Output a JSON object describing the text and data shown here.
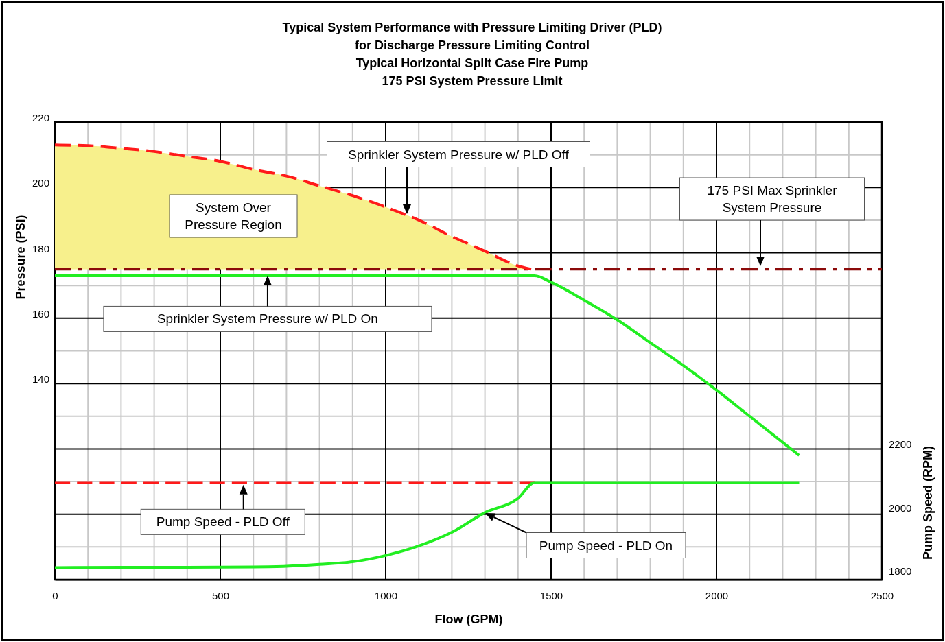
{
  "chart_data": {
    "type": "line",
    "title": "Typical System Performance with Pressure Limiting Driver (PLD)",
    "subtitle": "for Discharge Pressure Limiting Control\nTypical Horizontal Split Case Fire Pump\n175 PSI System Pressure Limit",
    "xlabel": "Flow (GPM)",
    "ylabel": "Pressure (PSI)",
    "y2label": "Pump Speed (RPM)",
    "xlim": [
      0,
      2500
    ],
    "xticks": [
      0,
      {
        "value": 100,
        "label": null
      },
      {
        "value": 200,
        "label": null
      },
      {
        "value": 300,
        "label": null
      },
      {
        "value": 400,
        "label": null
      },
      500,
      {
        "value": 600,
        "label": null
      },
      {
        "value": 700,
        "label": null
      },
      {
        "value": 800,
        "label": null
      },
      {
        "value": 900,
        "label": null
      },
      1000,
      {
        "value": 1100,
        "label": null
      },
      {
        "value": 1200,
        "label": null
      },
      {
        "value": 1300,
        "label": null
      },
      {
        "value": 1400,
        "label": null
      },
      1500,
      {
        "value": 1600,
        "label": null
      },
      {
        "value": 1700,
        "label": null
      },
      {
        "value": 1800,
        "label": null
      },
      {
        "value": 1900,
        "label": null
      },
      2000,
      {
        "value": 2100,
        "label": null
      },
      {
        "value": 2200,
        "label": null
      },
      {
        "value": 2300,
        "label": null
      },
      {
        "value": 2400,
        "label": null
      },
      2500
    ],
    "ylim": [
      80,
      220
    ],
    "yticks": [
      {
        "value": 80,
        "label": null
      },
      {
        "value": 90,
        "label": null
      },
      {
        "value": 100,
        "label": null
      },
      {
        "value": 110,
        "label": null
      },
      {
        "value": 120,
        "label": null
      },
      {
        "value": 130,
        "label": null
      },
      140,
      {
        "value": 150,
        "label": null
      },
      160,
      {
        "value": 170,
        "label": null
      },
      180,
      {
        "value": 190,
        "label": null
      },
      200,
      {
        "value": 210,
        "label": null
      },
      220
    ],
    "y2lim": [
      1774,
      3216
    ],
    "y2ticks": [
      1800,
      2000,
      2200
    ],
    "grid": true,
    "marker": "none",
    "series": [
      {
        "color": "#ff1a1a",
        "line_style": "dashed",
        "x": [
          0,
          100,
          200,
          300,
          400,
          500,
          600,
          700,
          800,
          900,
          1000,
          1100,
          1200,
          1300,
          1400,
          1440
        ],
        "values": [
          213,
          212.8,
          212,
          211,
          209.5,
          208,
          205.5,
          203.5,
          200.5,
          197.5,
          194,
          190,
          185,
          180.5,
          176,
          175
        ],
        "lower": [
          175,
          175,
          175,
          175,
          175,
          175,
          175,
          175,
          175,
          175,
          175,
          175,
          175,
          175,
          175,
          175
        ],
        "upper": [
          213,
          212.8,
          212,
          211,
          209.5,
          208,
          205.5,
          203.5,
          200.5,
          197.5,
          194,
          190,
          185,
          180.5,
          176,
          175
        ]
      },
      {
        "color": "#22ee22",
        "line_style": "solid",
        "x": [
          0,
          1450,
          1500,
          1600,
          1700,
          1800,
          1900,
          2000,
          2100,
          2200,
          2250
        ],
        "values": [
          173,
          173,
          171,
          165.5,
          159.5,
          152.5,
          145.5,
          138,
          130,
          122,
          118
        ]
      },
      {
        "color": "#ff1a1a",
        "line_style": "dashed",
        "axis": "y2",
        "x": [
          0,
          1450
        ],
        "values": [
          2080,
          2080
        ]
      },
      {
        "color": "#22ee22",
        "line_style": "solid",
        "axis": "y2",
        "x": [
          0,
          200,
          400,
          600,
          700,
          800,
          900,
          1000,
          1100,
          1200,
          1300,
          1400,
          1450,
          2250
        ],
        "values": [
          1812,
          1813,
          1813,
          1814,
          1816,
          1822,
          1830,
          1850,
          1880,
          1923,
          1985,
          2030,
          2080,
          2080
        ]
      }
    ],
    "ref_lines": [
      {
        "axis": "y",
        "value": 175,
        "color": "#8b0a0a",
        "line_style": "dashed"
      }
    ],
    "annotations": [
      "Sprinkler System Pressure w/ PLD Off",
      "175 PSI Max Sprinkler System Pressure",
      "System Over Pressure Region",
      {
        "text": "Sprinkler System Pressure w/ PLD On",
        "x": 643,
        "y": 173
      },
      {
        "text": "Pump Speed - PLD Off",
        "x": 570,
        "y": 109
      },
      "Pump Speed - PLD On"
    ]
  }
}
